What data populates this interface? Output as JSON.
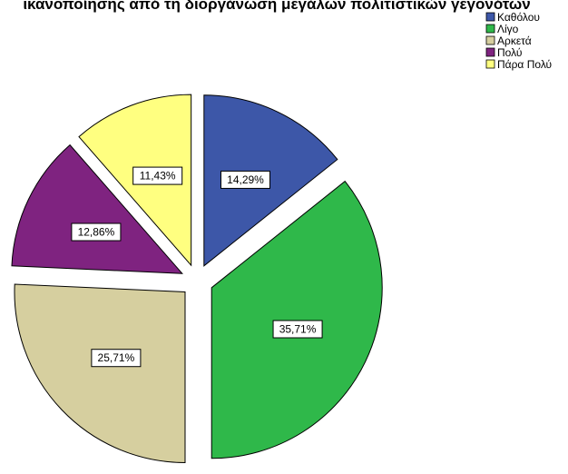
{
  "chart_data": {
    "type": "pie",
    "title": "ικανοποίησης από τη διοργάνωση μεγάλων πολιτιστικών γεγονότων",
    "categories": [
      "Καθόλου",
      "Λίγο",
      "Αρκετά",
      "Πολύ",
      "Πάρα Πολύ"
    ],
    "values": [
      14.29,
      35.71,
      25.71,
      12.86,
      11.43
    ],
    "data_labels": [
      "14,29%",
      "35,71%",
      "25,71%",
      "12,86%",
      "11,43%"
    ],
    "colors": [
      "#3d57a8",
      "#2fb84a",
      "#d6cf9f",
      "#7f2380",
      "#ffff80"
    ],
    "legend": {
      "placement": "top-right",
      "entries": [
        "Καθόλου",
        "Λίγο",
        "Αρκετά",
        "Πολύ",
        "Πάρα Πολύ"
      ]
    },
    "exploded": true,
    "start_angle_deg": 0,
    "direction": "clockwise"
  }
}
